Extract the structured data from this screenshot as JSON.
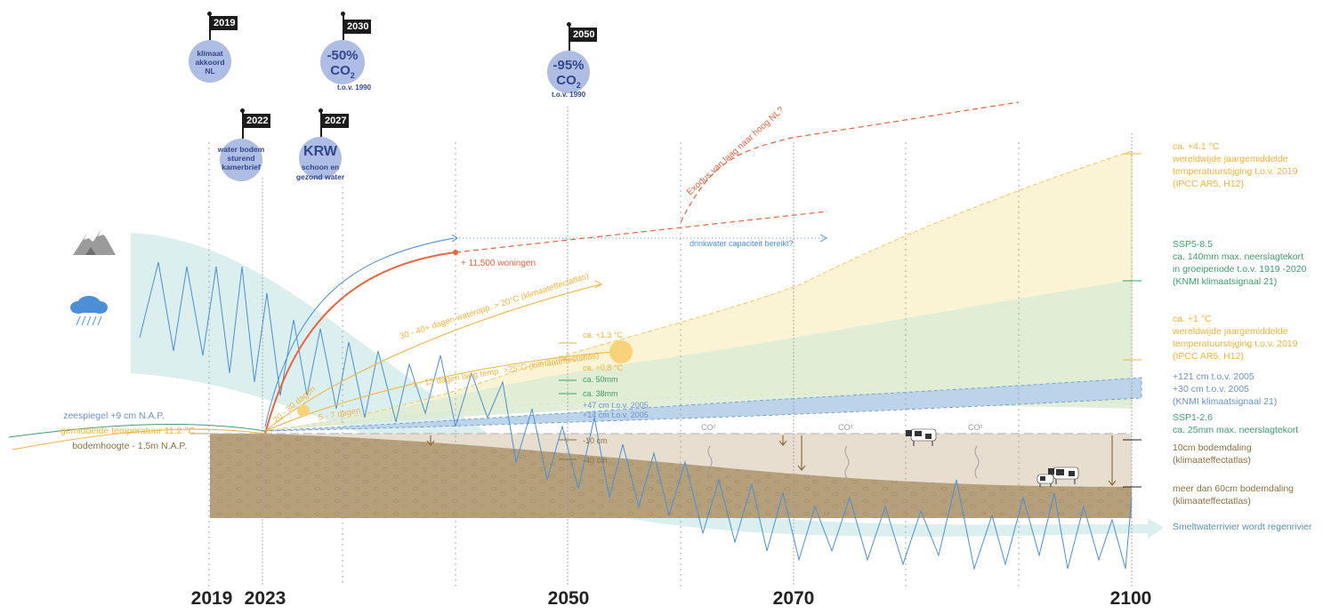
{
  "colors": {
    "temperature": "#f3b33d",
    "precipitation": "#3d9e6e",
    "sealevel": "#6a93c9",
    "soil": "#b5a07b",
    "soil_light": "#e7ded0",
    "housing": "#e9643f",
    "water": "#5b8fd0",
    "glacier_band": "#dcefef",
    "milestone": "#aebde3",
    "milestone_text": "#33468f"
  },
  "years": {
    "y2019": "2019",
    "y2023": "2023",
    "y2050": "2050",
    "y2070": "2070",
    "y2100": "2100"
  },
  "milestones": {
    "m2019": {
      "flag": "2019",
      "text": "klimaat akkoord NL"
    },
    "m2030": {
      "flag": "2030",
      "big": "-50%",
      "co2": "CO",
      "sub": "2",
      "ref": "t.o.v. 1990"
    },
    "m2050": {
      "flag": "2050",
      "big": "-95%",
      "co2": "CO",
      "sub": "2",
      "ref": "t.o.v. 1990"
    },
    "m2022": {
      "flag": "2022",
      "text": "water bodem sturend kamerbrief"
    },
    "m2027": {
      "flag": "2027",
      "big": "KRW",
      "text": "schoon en gezond water"
    }
  },
  "left_labels": {
    "sea": "zeespiegel +9 cm N.A.P.",
    "temp": "gemiddelde temperatuur 11,2 °C",
    "soil": "bodemhoogte - 1,5m N.A.P."
  },
  "annotations": {
    "housing": "+ 11.500 woningen",
    "drinkwater": "drinkwater capaciteit bereikt?",
    "exodus": "Exodus van laag naar hoog NL?",
    "days_20": "30 - 40+ dagen wateropp. > 20°C (klimaateffectatlas)",
    "days_25": "1 - 13 dagen lang temp. >25°C (klimaateffectatlas)",
    "days_20_30": "20 - 30 dagen",
    "days_5_7": "5 - 7 dagen",
    "t13": "ca. +1,3 °C",
    "t08": "ca. +0,8 °C",
    "p50": "ca. 50mm",
    "p38": "ca. 38mm",
    "s47": "+47 cm t.o.v. 2005",
    "s14": "+14 cm t.o.v. 2005",
    "d10": "-10 cm",
    "d40": "-40 cm",
    "co2": "CO²"
  },
  "right_labels": {
    "temp_high": [
      "ca. +4.1 °C",
      "wereldwijde jaargemiddelde",
      "temperatuurstijging t.o.v. 2019",
      "(IPCC AR5, H12)"
    ],
    "precip_high": [
      "SSP5-8.5",
      "ca. 140mm max. neerslagtekort",
      "in groeiperiode t.o.v. 1919 -2020",
      "(KNMI klimaatsignaal 21)"
    ],
    "temp_low": [
      "ca. +1 °C",
      "wereldwijde jaargemiddelde",
      "temperatuurstijging t.o.v. 2019",
      "(IPCC AR5, H12)"
    ],
    "sea": [
      "+121 cm t.o.v. 2005",
      "+30 cm t.o.v. 2005",
      "(KNMI klimaatsignaal 21)"
    ],
    "precip_low": [
      "SSP1-2.6",
      "ca. 25mm max. neerslagtekort"
    ],
    "soil10": [
      "10cm bodemdaling",
      "(klimaateffectatlas)"
    ],
    "soil60": [
      "meer dan 60cm bodemdaling",
      "(klimaateffectatlas)"
    ],
    "river": "Smeltwaterrivier wordt regenrivier"
  }
}
